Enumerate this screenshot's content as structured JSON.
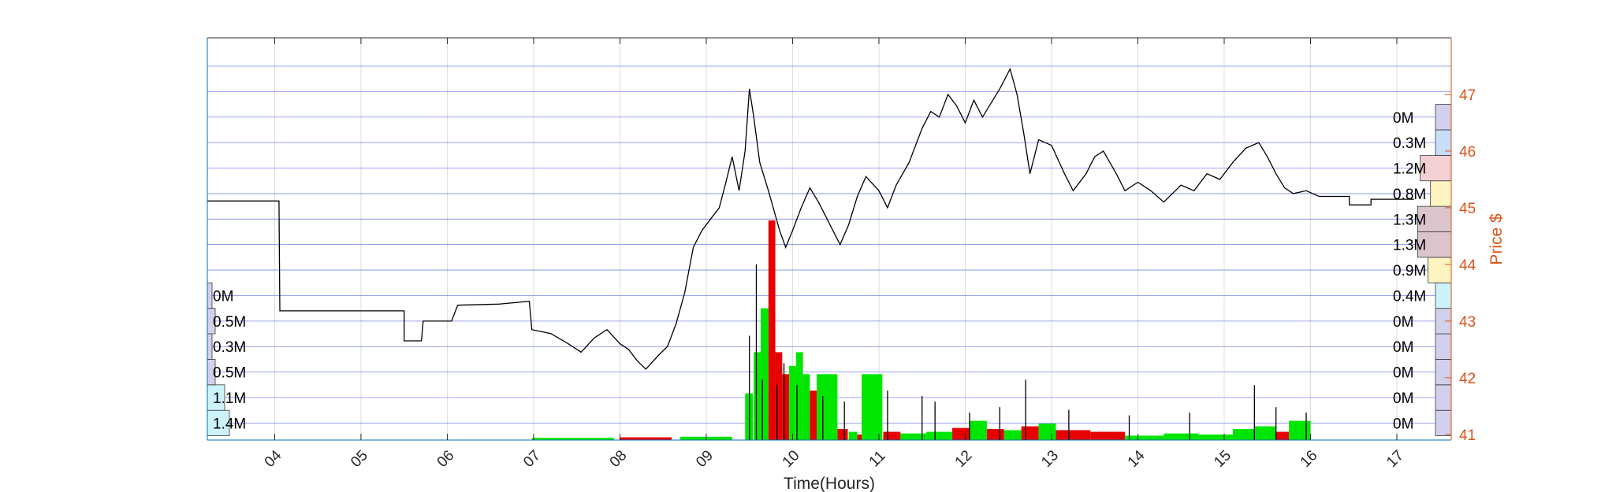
{
  "chart_data": {
    "type": "line",
    "xlabel": "Time(Hours)",
    "ylabel_right": "Price $",
    "x_axis": {
      "unit": "hour",
      "range": [
        3.22,
        17.63
      ],
      "ticks": [
        4,
        5,
        6,
        7,
        8,
        9,
        10,
        11,
        12,
        13,
        14,
        15,
        16,
        17
      ],
      "tick_labels": [
        "04",
        "05",
        "06",
        "07",
        "08",
        "09",
        "10",
        "11",
        "12",
        "13",
        "14",
        "15",
        "16",
        "17"
      ],
      "tick_label_rotation": "45deg"
    },
    "price_axis": {
      "side": "right",
      "range": [
        40.9,
        48.0
      ],
      "ticks": [
        41,
        42,
        43,
        44,
        45,
        46,
        47
      ],
      "color": "#D95319"
    },
    "grid": {
      "vertical": true,
      "horizontal_levels": "one per volume-profile band",
      "horizontal_color": "#4f5fe0"
    },
    "price_series": {
      "name": "",
      "color": "#000000",
      "points": [
        [
          3.22,
          45.12
        ],
        [
          4.05,
          45.12
        ],
        [
          4.06,
          43.18
        ],
        [
          5.5,
          43.18
        ],
        [
          5.5,
          42.65
        ],
        [
          5.7,
          42.65
        ],
        [
          5.72,
          43.0
        ],
        [
          6.05,
          43.0
        ],
        [
          6.12,
          43.28
        ],
        [
          6.6,
          43.3
        ],
        [
          6.95,
          43.35
        ],
        [
          6.98,
          42.85
        ],
        [
          7.2,
          42.78
        ],
        [
          7.4,
          42.6
        ],
        [
          7.55,
          42.45
        ],
        [
          7.7,
          42.7
        ],
        [
          7.85,
          42.85
        ],
        [
          8.0,
          42.6
        ],
        [
          8.1,
          42.5
        ],
        [
          8.2,
          42.3
        ],
        [
          8.3,
          42.15
        ],
        [
          8.45,
          42.4
        ],
        [
          8.55,
          42.55
        ],
        [
          8.65,
          42.95
        ],
        [
          8.75,
          43.5
        ],
        [
          8.85,
          44.3
        ],
        [
          8.95,
          44.6
        ],
        [
          9.05,
          44.8
        ],
        [
          9.15,
          45.0
        ],
        [
          9.22,
          45.4
        ],
        [
          9.3,
          45.9
        ],
        [
          9.38,
          45.3
        ],
        [
          9.45,
          46.0
        ],
        [
          9.5,
          47.1
        ],
        [
          9.55,
          46.6
        ],
        [
          9.62,
          45.8
        ],
        [
          9.72,
          45.3
        ],
        [
          9.85,
          44.6
        ],
        [
          9.92,
          44.3
        ],
        [
          10.0,
          44.6
        ],
        [
          10.1,
          45.0
        ],
        [
          10.2,
          45.35
        ],
        [
          10.3,
          45.1
        ],
        [
          10.4,
          44.8
        ],
        [
          10.5,
          44.5
        ],
        [
          10.55,
          44.35
        ],
        [
          10.65,
          44.7
        ],
        [
          10.75,
          45.2
        ],
        [
          10.85,
          45.55
        ],
        [
          11.0,
          45.3
        ],
        [
          11.1,
          45.0
        ],
        [
          11.2,
          45.4
        ],
        [
          11.35,
          45.8
        ],
        [
          11.5,
          46.4
        ],
        [
          11.6,
          46.7
        ],
        [
          11.7,
          46.6
        ],
        [
          11.8,
          47.0
        ],
        [
          11.9,
          46.8
        ],
        [
          12.0,
          46.5
        ],
        [
          12.1,
          46.9
        ],
        [
          12.2,
          46.6
        ],
        [
          12.3,
          46.85
        ],
        [
          12.4,
          47.1
        ],
        [
          12.52,
          47.45
        ],
        [
          12.6,
          47.0
        ],
        [
          12.68,
          46.3
        ],
        [
          12.75,
          45.6
        ],
        [
          12.85,
          46.2
        ],
        [
          13.0,
          46.1
        ],
        [
          13.15,
          45.6
        ],
        [
          13.25,
          45.3
        ],
        [
          13.4,
          45.6
        ],
        [
          13.5,
          45.9
        ],
        [
          13.6,
          46.0
        ],
        [
          13.75,
          45.6
        ],
        [
          13.85,
          45.3
        ],
        [
          14.0,
          45.45
        ],
        [
          14.15,
          45.3
        ],
        [
          14.3,
          45.1
        ],
        [
          14.5,
          45.4
        ],
        [
          14.65,
          45.3
        ],
        [
          14.8,
          45.6
        ],
        [
          14.95,
          45.5
        ],
        [
          15.1,
          45.8
        ],
        [
          15.25,
          46.05
        ],
        [
          15.4,
          46.15
        ],
        [
          15.5,
          45.9
        ],
        [
          15.6,
          45.6
        ],
        [
          15.7,
          45.35
        ],
        [
          15.8,
          45.25
        ],
        [
          15.95,
          45.3
        ],
        [
          16.1,
          45.2
        ],
        [
          16.45,
          45.2
        ],
        [
          16.45,
          45.05
        ],
        [
          16.7,
          45.05
        ],
        [
          16.7,
          45.15
        ],
        [
          17.2,
          45.15
        ]
      ]
    },
    "volume_series": {
      "name": "",
      "axis": "hidden secondary axis (shares range)",
      "range": [
        0,
        4000000
      ],
      "colors": {
        "up": "#00e600",
        "down": "#e60000",
        "line": "#000000"
      },
      "bars": [
        {
          "x": 6.98,
          "w": 0.95,
          "v": 40000,
          "dir": "up"
        },
        {
          "x": 8.0,
          "w": 0.6,
          "v": 50000,
          "dir": "down"
        },
        {
          "x": 8.7,
          "w": 0.6,
          "v": 60000,
          "dir": "up"
        },
        {
          "x": 9.45,
          "w": 0.09,
          "v": 850000,
          "dir": "up"
        },
        {
          "x": 9.55,
          "w": 0.08,
          "v": 1600000,
          "dir": "up"
        },
        {
          "x": 9.63,
          "w": 0.09,
          "v": 2400000,
          "dir": "up"
        },
        {
          "x": 9.72,
          "w": 0.08,
          "v": 4000000,
          "dir": "down"
        },
        {
          "x": 9.8,
          "w": 0.08,
          "v": 1600000,
          "dir": "down"
        },
        {
          "x": 9.88,
          "w": 0.08,
          "v": 1200000,
          "dir": "down"
        },
        {
          "x": 9.96,
          "w": 0.08,
          "v": 1350000,
          "dir": "up"
        },
        {
          "x": 10.04,
          "w": 0.08,
          "v": 1600000,
          "dir": "up"
        },
        {
          "x": 10.12,
          "w": 0.08,
          "v": 1200000,
          "dir": "up"
        },
        {
          "x": 10.2,
          "w": 0.08,
          "v": 900000,
          "dir": "down"
        },
        {
          "x": 10.28,
          "w": 0.24,
          "v": 1200000,
          "dir": "up"
        },
        {
          "x": 10.52,
          "w": 0.12,
          "v": 200000,
          "dir": "down"
        },
        {
          "x": 10.65,
          "w": 0.1,
          "v": 150000,
          "dir": "up"
        },
        {
          "x": 10.75,
          "w": 0.1,
          "v": 100000,
          "dir": "down"
        },
        {
          "x": 10.8,
          "w": 0.24,
          "v": 1200000,
          "dir": "up"
        },
        {
          "x": 11.05,
          "w": 0.2,
          "v": 150000,
          "dir": "down"
        },
        {
          "x": 11.25,
          "w": 0.3,
          "v": 120000,
          "dir": "up"
        },
        {
          "x": 11.55,
          "w": 0.3,
          "v": 150000,
          "dir": "up"
        },
        {
          "x": 11.85,
          "w": 0.2,
          "v": 220000,
          "dir": "down"
        },
        {
          "x": 12.05,
          "w": 0.2,
          "v": 350000,
          "dir": "up"
        },
        {
          "x": 12.25,
          "w": 0.2,
          "v": 200000,
          "dir": "down"
        },
        {
          "x": 12.45,
          "w": 0.2,
          "v": 180000,
          "dir": "up"
        },
        {
          "x": 12.65,
          "w": 0.2,
          "v": 250000,
          "dir": "down"
        },
        {
          "x": 12.85,
          "w": 0.2,
          "v": 300000,
          "dir": "up"
        },
        {
          "x": 13.05,
          "w": 0.4,
          "v": 180000,
          "dir": "down"
        },
        {
          "x": 13.45,
          "w": 0.4,
          "v": 150000,
          "dir": "down"
        },
        {
          "x": 13.85,
          "w": 0.45,
          "v": 80000,
          "dir": "up"
        },
        {
          "x": 14.3,
          "w": 0.4,
          "v": 120000,
          "dir": "up"
        },
        {
          "x": 14.7,
          "w": 0.4,
          "v": 100000,
          "dir": "up"
        },
        {
          "x": 15.1,
          "w": 0.25,
          "v": 200000,
          "dir": "up"
        },
        {
          "x": 15.35,
          "w": 0.25,
          "v": 250000,
          "dir": "up"
        },
        {
          "x": 15.6,
          "w": 0.15,
          "v": 150000,
          "dir": "down"
        },
        {
          "x": 15.75,
          "w": 0.25,
          "v": 350000,
          "dir": "up"
        }
      ],
      "spikes": [
        [
          9.5,
          1900000
        ],
        [
          9.58,
          3200000
        ],
        [
          9.65,
          1100000
        ],
        [
          9.82,
          1000000
        ],
        [
          9.9,
          1400000
        ],
        [
          10.05,
          1000000
        ],
        [
          10.35,
          800000
        ],
        [
          10.6,
          700000
        ],
        [
          11.1,
          900000
        ],
        [
          11.5,
          800000
        ],
        [
          11.65,
          700000
        ],
        [
          12.05,
          500000
        ],
        [
          12.4,
          600000
        ],
        [
          12.7,
          1100000
        ],
        [
          13.2,
          550000
        ],
        [
          13.9,
          450000
        ],
        [
          14.6,
          500000
        ],
        [
          15.35,
          1000000
        ],
        [
          15.6,
          600000
        ],
        [
          15.95,
          500000
        ]
      ]
    },
    "volume_profile_bands": [
      41.2,
      41.65,
      42.1,
      42.55,
      43.0,
      43.45,
      43.9,
      44.35,
      44.8,
      45.25,
      45.7,
      46.15,
      46.6,
      47.05,
      47.5
    ],
    "volume_profile_left": [
      {
        "label": "1.4M",
        "volume": 1400000,
        "color": "#ccf2fa"
      },
      {
        "label": "1.1M",
        "volume": 1100000,
        "color": "#ccf2fa"
      },
      {
        "label": "0.5M",
        "volume": 500000,
        "color": "#d2d0ec"
      },
      {
        "label": "0.3M",
        "volume": 300000,
        "color": "#d2d0ec"
      },
      {
        "label": "0.5M",
        "volume": 500000,
        "color": "#d2d0ec"
      },
      {
        "label": "0M",
        "volume": 0,
        "color": "#d2d0ec"
      }
    ],
    "volume_profile_right": [
      {
        "label": "0M",
        "volume": 0,
        "color": "#d2d0ec"
      },
      {
        "label": "0M",
        "volume": 0,
        "color": "#d2d0ec"
      },
      {
        "label": "0M",
        "volume": 0,
        "color": "#d2d0ec"
      },
      {
        "label": "0M",
        "volume": 0,
        "color": "#d2d0ec"
      },
      {
        "label": "0M",
        "volume": 0,
        "color": "#d2d0ec"
      },
      {
        "label": "0.4M",
        "volume": 400000,
        "color": "#ccf2fa"
      },
      {
        "label": "0.9M",
        "volume": 900000,
        "color": "#fdf4c2"
      },
      {
        "label": "1.3M",
        "volume": 1300000,
        "color": "#dcc4cc"
      },
      {
        "label": "1.3M",
        "volume": 1300000,
        "color": "#dcc4cc"
      },
      {
        "label": "0.8M",
        "volume": 800000,
        "color": "#fdf4c2"
      },
      {
        "label": "1.2M",
        "volume": 1200000,
        "color": "#f2d0d4"
      },
      {
        "label": "0.3M",
        "volume": 300000,
        "color": "#c6defa"
      },
      {
        "label": "0M",
        "volume": 0,
        "color": "#d2d0ec"
      }
    ]
  }
}
